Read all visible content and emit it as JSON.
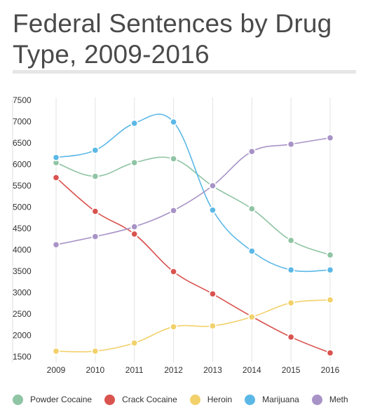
{
  "chart_data": {
    "type": "line",
    "title": "Federal Sentences by Drug Type, 2009-2016",
    "xlabel": "",
    "ylabel": "",
    "x": [
      "2009",
      "2010",
      "2011",
      "2012",
      "2013",
      "2014",
      "2015",
      "2016"
    ],
    "ylim": [
      1500,
      7500
    ],
    "yticks": [
      1500,
      2000,
      2500,
      3000,
      3500,
      4000,
      4500,
      5000,
      5500,
      6000,
      6500,
      7000,
      7500
    ],
    "grid": "vertical",
    "legend_position": "bottom",
    "series": [
      {
        "name": "Powder Cocaine",
        "color": "#8fc4a4",
        "values": [
          6040,
          5720,
          6040,
          6130,
          5490,
          4960,
          4220,
          3880
        ]
      },
      {
        "name": "Crack Cocaine",
        "color": "#d9534f",
        "values": [
          5690,
          4900,
          4370,
          3490,
          2970,
          2440,
          1960,
          1590
        ]
      },
      {
        "name": "Heroin",
        "color": "#f2d16b",
        "values": [
          1630,
          1630,
          1820,
          2200,
          2220,
          2430,
          2760,
          2830
        ]
      },
      {
        "name": "Marijuana",
        "color": "#5bb8e6",
        "values": [
          6160,
          6330,
          6960,
          6990,
          4930,
          3970,
          3530,
          3530
        ]
      },
      {
        "name": "Meth",
        "color": "#a893c7",
        "values": [
          4120,
          4310,
          4540,
          4920,
          5500,
          6300,
          6470,
          6620
        ]
      }
    ]
  }
}
